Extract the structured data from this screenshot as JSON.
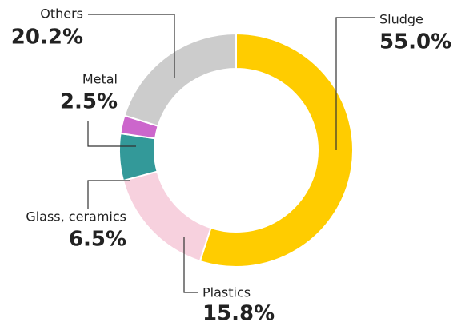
{
  "chart_data": {
    "type": "donut",
    "categories": [
      "Sludge",
      "Plastics",
      "Glass, ceramics",
      "Metal",
      "Others"
    ],
    "values": [
      55.0,
      15.8,
      6.5,
      2.5,
      20.2
    ],
    "value_labels": [
      "55.0%",
      "15.8%",
      "6.5%",
      "2.5%",
      "20.2%"
    ],
    "colors": [
      "#ffcc00",
      "#f7d1de",
      "#339999",
      "#cc66cc",
      "#cccccc"
    ]
  }
}
